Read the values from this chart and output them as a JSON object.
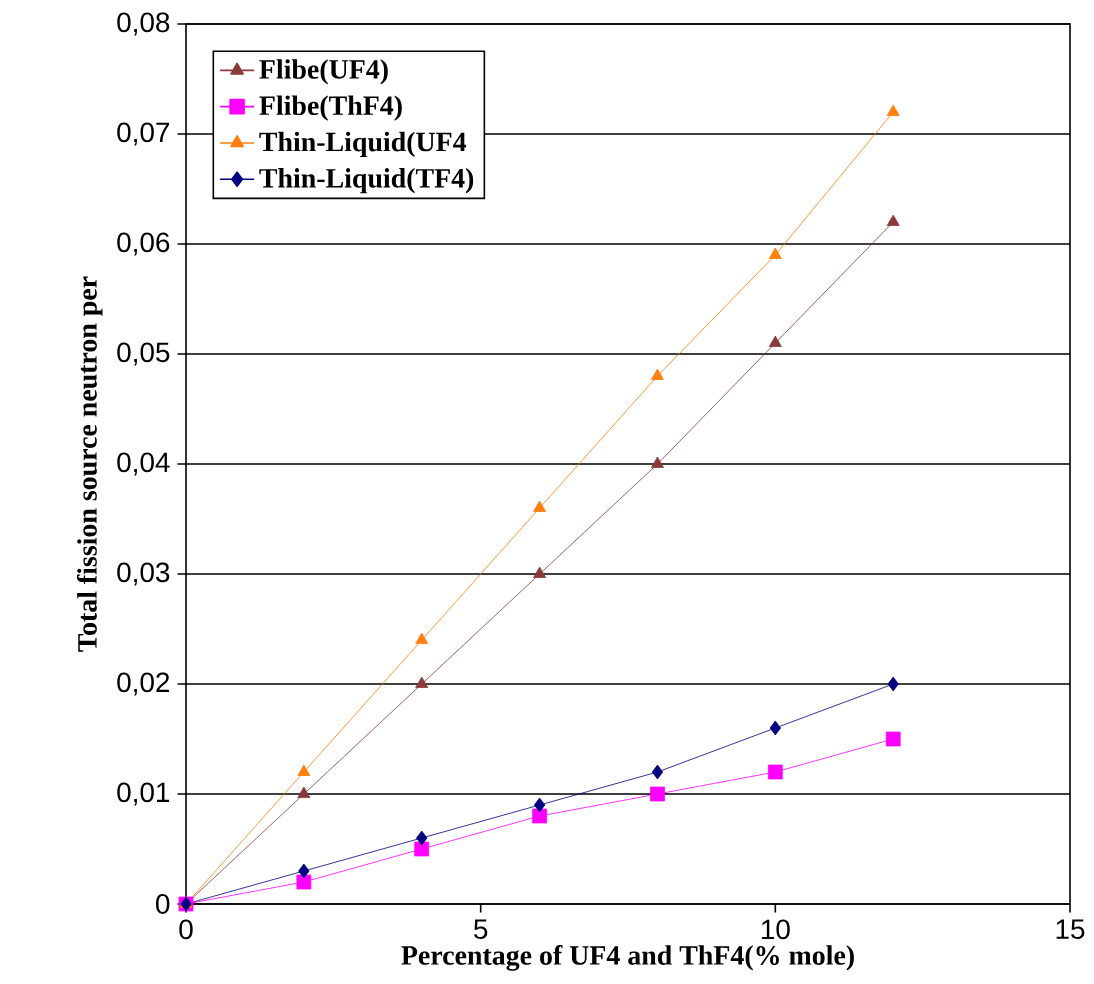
{
  "chart_data": {
    "type": "line",
    "xlabel": "Percentage of UF4 and ThF4(% mole)",
    "ylabel": "Total fission source neutron per",
    "x": [
      0,
      2,
      4,
      6,
      8,
      10,
      12
    ],
    "series": [
      {
        "name": "Flibe(UF4)",
        "color": "#8b3a3a",
        "marker": "triangle",
        "values": [
          0,
          0.01,
          0.02,
          0.03,
          0.04,
          0.051,
          0.062
        ]
      },
      {
        "name": "Flibe(ThF4)",
        "color": "#ff00ff",
        "marker": "square",
        "values": [
          0,
          0.002,
          0.005,
          0.008,
          0.01,
          0.012,
          0.015
        ]
      },
      {
        "name": "Thin-Liquid(UF4",
        "color": "#ff7f0e",
        "marker": "triangle",
        "values": [
          0,
          0.012,
          0.024,
          0.036,
          0.048,
          0.059,
          0.072
        ]
      },
      {
        "name": "Thin-Liquid(TF4)",
        "color": "#000080",
        "marker": "diamond",
        "values": [
          0,
          0.003,
          0.006,
          0.009,
          0.012,
          0.016,
          0.02
        ]
      }
    ],
    "xlim": [
      0,
      15
    ],
    "xticks": [
      0,
      5,
      10,
      15
    ],
    "ylim": [
      0,
      0.08
    ],
    "yticks": [
      {
        "value": 0,
        "label": "0"
      },
      {
        "value": 0.01,
        "label": "0,01"
      },
      {
        "value": 0.02,
        "label": "0,02"
      },
      {
        "value": 0.03,
        "label": "0,03"
      },
      {
        "value": 0.04,
        "label": "0,04"
      },
      {
        "value": 0.05,
        "label": "0,05"
      },
      {
        "value": 0.06,
        "label": "0,06"
      },
      {
        "value": 0.07,
        "label": "0,07"
      },
      {
        "value": 0.08,
        "label": "0,08"
      }
    ],
    "grid": "y",
    "legend": "top left",
    "line_style": "solid"
  }
}
